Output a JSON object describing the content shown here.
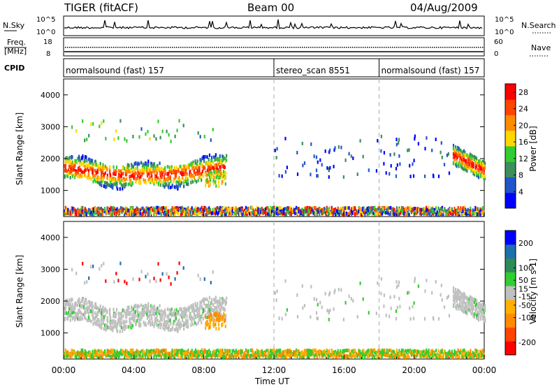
{
  "header": {
    "title": "TIGER (fitACF)",
    "beam": "Beam 00",
    "date": "04/Aug/2009"
  },
  "strip": {
    "nsky_label": "N.Sky",
    "nsky_ticks": [
      "10^5",
      "10^0"
    ],
    "nsearch_label": "N.Search",
    "freq_label": "Freq.",
    "freq_unit": "[MHz]",
    "freq_ticks": [
      "18",
      "8"
    ],
    "nave_label": "Nave",
    "nave_ticks": [
      "60",
      "0"
    ],
    "cpid_label": "CPID",
    "cpid_segments": [
      {
        "label": "normalsound (fast) 157",
        "start_hour": 0
      },
      {
        "label": "stereo_scan 8551",
        "start_hour": 12
      },
      {
        "label": "normalsound (fast) 157",
        "start_hour": 18
      }
    ]
  },
  "chart_data": [
    {
      "type": "heatmap",
      "quantity": "Power",
      "ylabel": "Slant Range [km]",
      "colorbar_label": "Power [dB]",
      "colorbar_ticks": [
        28,
        24,
        20,
        16,
        12,
        8,
        4
      ],
      "colorbar_range": [
        0,
        30
      ],
      "colors": [
        "#0000ff",
        "#2255cc",
        "#3c8f5a",
        "#32cd32",
        "#ffd700",
        "#ff8c00",
        "#ff4500",
        "#ff0000"
      ],
      "x_ticks": [
        "00:00",
        "04:00",
        "08:00",
        "12:00",
        "16:00",
        "20:00",
        "00:00"
      ],
      "xlim_hours": [
        0,
        24
      ],
      "y_ticks": [
        1000,
        2000,
        3000,
        4000
      ],
      "ylim_km": [
        180,
        4500
      ],
      "dashed_lines_hours": [
        12,
        18
      ]
    },
    {
      "type": "heatmap",
      "quantity": "Velocity",
      "ylabel": "Slant Range [km]",
      "colorbar_label": "Velocity [m s-1]",
      "colorbar_ticks": [
        200,
        100,
        50,
        15,
        -15,
        -50,
        -100,
        -200
      ],
      "colorbar_range": [
        -250,
        250
      ],
      "colors": [
        "#ff0000",
        "#ff4500",
        "#ff8c00",
        "#ffb000",
        "#c0c0c0",
        "#32cd32",
        "#2e8b57",
        "#1e6fb0",
        "#0000ff"
      ],
      "x_ticks": [
        "00:00",
        "04:00",
        "08:00",
        "12:00",
        "16:00",
        "20:00",
        "00:00"
      ],
      "xlim_hours": [
        0,
        24
      ],
      "y_ticks": [
        1000,
        2000,
        3000,
        4000
      ],
      "ylim_km": [
        180,
        4500
      ],
      "dashed_lines_hours": [
        12,
        18
      ]
    }
  ],
  "footer": {
    "xlabel": "Time UT"
  }
}
